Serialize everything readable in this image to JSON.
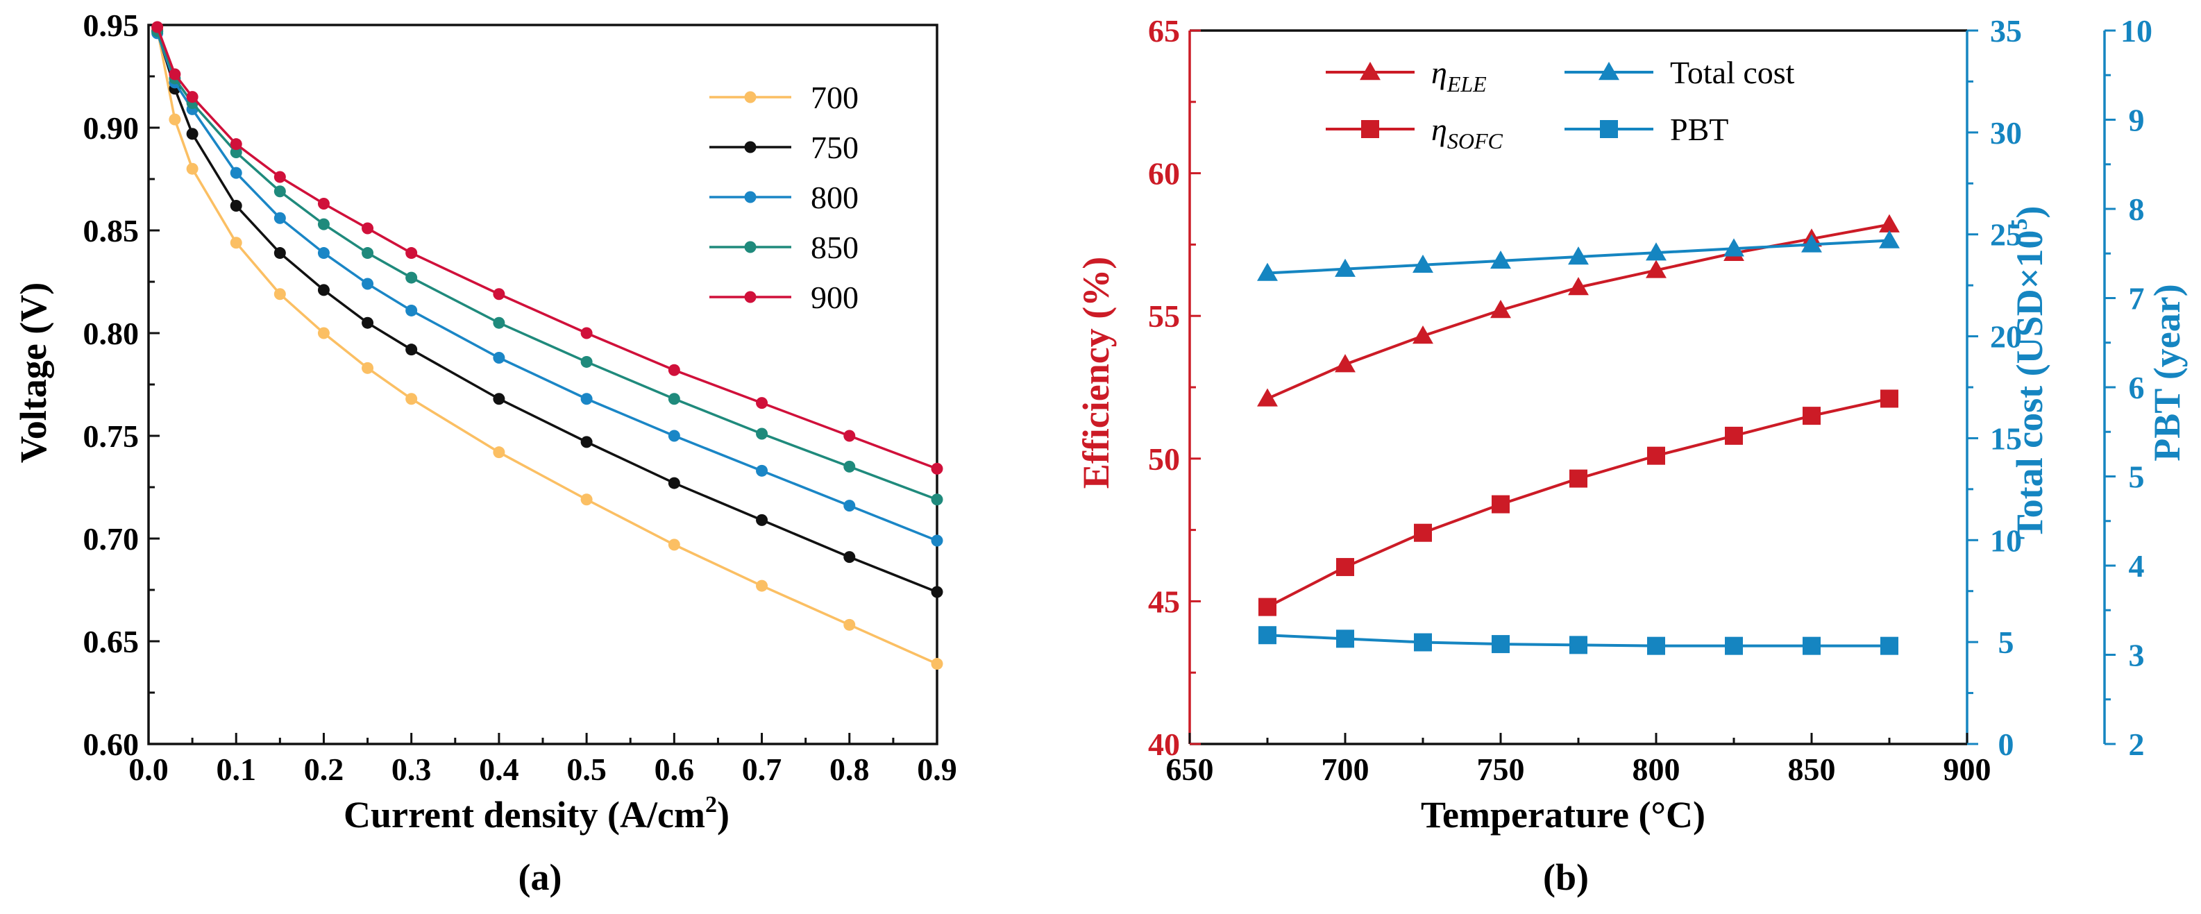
{
  "chart_data": [
    {
      "type": "line",
      "panel_label": "(a)",
      "title": "",
      "xlabel": "Current density (A/cm",
      "xlabel_sup": "2",
      "xlabel_close": ")",
      "ylabel": "Voltage (V)",
      "xlim": [
        0.0,
        0.9
      ],
      "ylim": [
        0.6,
        0.95
      ],
      "xticks": [
        "0.0",
        "0.1",
        "0.2",
        "0.3",
        "0.4",
        "0.5",
        "0.6",
        "0.7",
        "0.8",
        "0.9"
      ],
      "yticks": [
        "0.60",
        "0.65",
        "0.70",
        "0.75",
        "0.80",
        "0.85",
        "0.90",
        "0.95"
      ],
      "legend_position": "top-right",
      "x": [
        0.01,
        0.03,
        0.05,
        0.1,
        0.15,
        0.2,
        0.25,
        0.3,
        0.4,
        0.5,
        0.6,
        0.7,
        0.8,
        0.9
      ],
      "series": [
        {
          "name": "700",
          "color": "#fbbf63",
          "values": [
            0.948,
            0.904,
            0.88,
            0.844,
            0.819,
            0.8,
            0.783,
            0.768,
            0.742,
            0.719,
            0.697,
            0.677,
            0.658,
            0.639
          ]
        },
        {
          "name": "750",
          "color": "#111111",
          "values": [
            0.947,
            0.919,
            0.897,
            0.862,
            0.839,
            0.821,
            0.805,
            0.792,
            0.768,
            0.747,
            0.727,
            0.709,
            0.691,
            0.674
          ]
        },
        {
          "name": "800",
          "color": "#1a86c6",
          "values": [
            0.946,
            0.922,
            0.909,
            0.878,
            0.856,
            0.839,
            0.824,
            0.811,
            0.788,
            0.768,
            0.75,
            0.733,
            0.716,
            0.699
          ]
        },
        {
          "name": "850",
          "color": "#1f8a7c",
          "values": [
            0.947,
            0.924,
            0.912,
            0.888,
            0.869,
            0.853,
            0.839,
            0.827,
            0.805,
            0.786,
            0.768,
            0.751,
            0.735,
            0.719
          ]
        },
        {
          "name": "900",
          "color": "#d0103a",
          "values": [
            0.949,
            0.926,
            0.915,
            0.892,
            0.876,
            0.863,
            0.851,
            0.839,
            0.819,
            0.8,
            0.782,
            0.766,
            0.75,
            0.734
          ]
        }
      ]
    },
    {
      "type": "line",
      "panel_label": "(b)",
      "title": "",
      "xlabel": "Temperature (°C)",
      "ylabel_left": "Efficiency (%)",
      "ylabel_right1": "Total cost (USD×10",
      "ylabel_right1_sup": "5",
      "ylabel_right1_close": ")",
      "ylabel_right2": "PBT (year)",
      "xlim": [
        650,
        900
      ],
      "ylim_left": [
        40,
        65
      ],
      "ylim_right1": [
        0,
        35
      ],
      "ylim_right2": [
        2,
        10
      ],
      "xticks": [
        "650",
        "700",
        "750",
        "800",
        "850",
        "900"
      ],
      "yticks_left": [
        "40",
        "45",
        "50",
        "55",
        "60",
        "65"
      ],
      "yticks_right1": [
        "0",
        "5",
        "10",
        "15",
        "20",
        "25",
        "30",
        "35"
      ],
      "yticks_right2": [
        "2",
        "3",
        "4",
        "5",
        "6",
        "7",
        "8",
        "9",
        "10"
      ],
      "legend_position": "top",
      "x": [
        675,
        700,
        725,
        750,
        775,
        800,
        825,
        850,
        875
      ],
      "series": [
        {
          "name": "η",
          "name_sub": "ELE",
          "axis": "left",
          "marker": "triangle",
          "color": "#cc1b26",
          "values": [
            52.1,
            53.3,
            54.3,
            55.2,
            56.0,
            56.6,
            57.2,
            57.7,
            58.2
          ]
        },
        {
          "name": "η",
          "name_sub": "SOFC",
          "axis": "left",
          "marker": "square",
          "color": "#cc1b26",
          "values": [
            44.8,
            46.2,
            47.4,
            48.4,
            49.3,
            50.1,
            50.8,
            51.5,
            52.1
          ]
        },
        {
          "name": "Total cost",
          "name_sub": "",
          "axis": "right1",
          "marker": "triangle",
          "color": "#1585c1",
          "values": [
            23.1,
            23.3,
            23.5,
            23.7,
            23.9,
            24.1,
            24.3,
            24.5,
            24.7
          ]
        },
        {
          "name": "PBT",
          "name_sub": "",
          "axis": "right2",
          "marker": "square",
          "color": "#1585c1",
          "values": [
            3.22,
            3.18,
            3.14,
            3.12,
            3.11,
            3.1,
            3.1,
            3.1,
            3.1
          ]
        }
      ]
    }
  ]
}
